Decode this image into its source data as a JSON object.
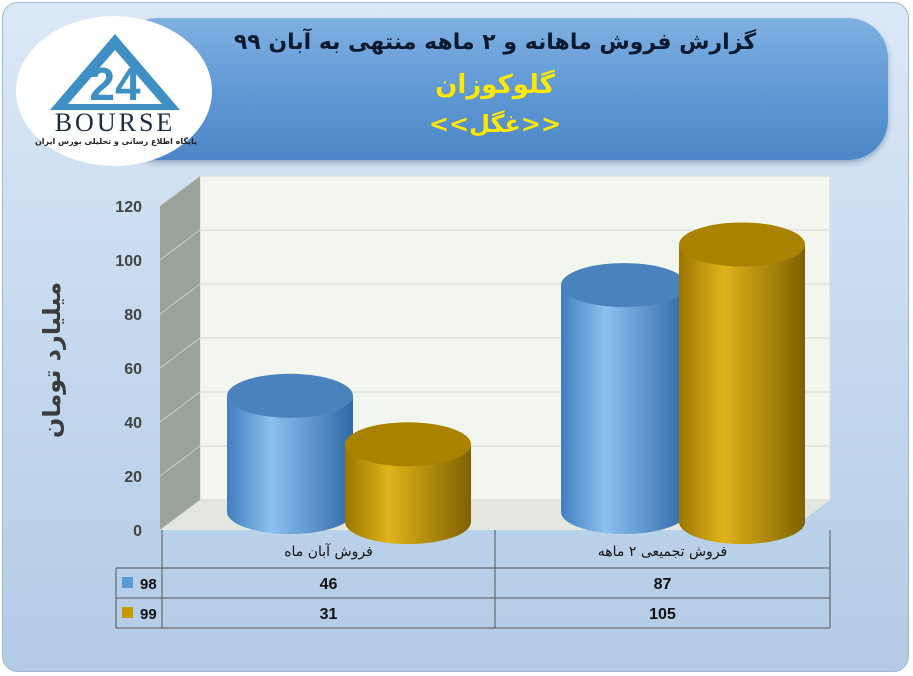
{
  "header": {
    "title": "گزارش فروش ماهانه و ۲ ماهه منتهی به آبان ۹۹",
    "company": "گلوکوزان",
    "ticker": "<<غگل>>"
  },
  "logo": {
    "wordmark": "BOURSE",
    "tagline": "پایگاه اطلاع رسانی و تحلیلی بورس ایران"
  },
  "colors": {
    "series_98": "#5b9bd5",
    "series_99": "#c69a00",
    "title_text": "#0b1a2e",
    "company_text": "#ffe800"
  },
  "chart_data": {
    "type": "bar",
    "subtype": "3d-cylinder",
    "categories": [
      "فروش آبان ماه",
      "فروش تجمیعی ۲ ماهه"
    ],
    "series": [
      {
        "name": "98",
        "values": [
          46,
          87
        ],
        "color": "#5b9bd5"
      },
      {
        "name": "99",
        "values": [
          31,
          105
        ],
        "color": "#c69a00"
      }
    ],
    "ylabel": "میلیارد تومان",
    "ylim": [
      0,
      120
    ],
    "yticks": [
      0,
      20,
      40,
      60,
      80,
      100,
      120
    ],
    "grid": true,
    "legend": "data-table"
  }
}
